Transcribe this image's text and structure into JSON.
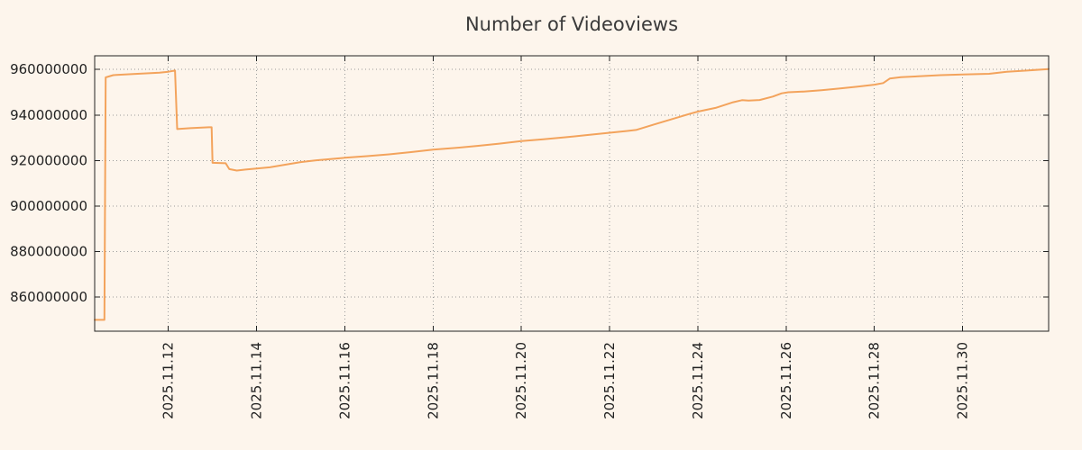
{
  "colors": {
    "background": "#fdf5ec",
    "line": "#f3a35c",
    "grid": "#9a9a9a",
    "axis": "#222222",
    "text": "#222222"
  },
  "chart_data": {
    "type": "line",
    "title": "Number of Videoviews",
    "xlabel": "",
    "ylabel": "",
    "legend": "none",
    "grid": "dotted",
    "x_unit": "date, day-of-November-2025 as number (31.95 ~ Dec 1)",
    "xlim": [
      10.33,
      31.95
    ],
    "ylim": [
      845000000,
      966000000
    ],
    "yticks": [
      860000000,
      880000000,
      900000000,
      920000000,
      940000000,
      960000000
    ],
    "xticks": [
      {
        "pos": 12,
        "label": "2025.11.12"
      },
      {
        "pos": 14,
        "label": "2025.11.14"
      },
      {
        "pos": 16,
        "label": "2025.11.16"
      },
      {
        "pos": 18,
        "label": "2025.11.18"
      },
      {
        "pos": 20,
        "label": "2025.11.20"
      },
      {
        "pos": 22,
        "label": "2025.11.22"
      },
      {
        "pos": 24,
        "label": "2025.11.24"
      },
      {
        "pos": 26,
        "label": "2025.11.26"
      },
      {
        "pos": 28,
        "label": "2025.11.28"
      },
      {
        "pos": 30,
        "label": "2025.11.30"
      }
    ],
    "points": [
      [
        10.33,
        850000000
      ],
      [
        10.55,
        850000000
      ],
      [
        10.58,
        956500000
      ],
      [
        10.75,
        957500000
      ],
      [
        11.2,
        958000000
      ],
      [
        11.8,
        958600000
      ],
      [
        12.0,
        959000000
      ],
      [
        12.15,
        959500000
      ],
      [
        12.2,
        933800000
      ],
      [
        12.5,
        934200000
      ],
      [
        12.92,
        934600000
      ],
      [
        12.98,
        934600000
      ],
      [
        13.0,
        919000000
      ],
      [
        13.3,
        918800000
      ],
      [
        13.38,
        916200000
      ],
      [
        13.55,
        915600000
      ],
      [
        13.75,
        916000000
      ],
      [
        14.0,
        916500000
      ],
      [
        14.3,
        917000000
      ],
      [
        14.6,
        918000000
      ],
      [
        15.0,
        919300000
      ],
      [
        15.35,
        920100000
      ],
      [
        15.7,
        920700000
      ],
      [
        16.0,
        921200000
      ],
      [
        16.5,
        921900000
      ],
      [
        17.0,
        922700000
      ],
      [
        17.5,
        923700000
      ],
      [
        18.0,
        924800000
      ],
      [
        18.5,
        925500000
      ],
      [
        19.0,
        926400000
      ],
      [
        19.5,
        927400000
      ],
      [
        20.0,
        928500000
      ],
      [
        20.5,
        929300000
      ],
      [
        21.0,
        930200000
      ],
      [
        21.5,
        931200000
      ],
      [
        22.0,
        932200000
      ],
      [
        22.4,
        933000000
      ],
      [
        22.6,
        933400000
      ],
      [
        23.0,
        935800000
      ],
      [
        23.4,
        938100000
      ],
      [
        23.8,
        940400000
      ],
      [
        24.0,
        941500000
      ],
      [
        24.4,
        943100000
      ],
      [
        24.8,
        945600000
      ],
      [
        25.0,
        946500000
      ],
      [
        25.15,
        946300000
      ],
      [
        25.4,
        946600000
      ],
      [
        25.7,
        948100000
      ],
      [
        25.9,
        949500000
      ],
      [
        26.05,
        950000000
      ],
      [
        26.4,
        950300000
      ],
      [
        26.8,
        950900000
      ],
      [
        27.2,
        951600000
      ],
      [
        27.6,
        952400000
      ],
      [
        28.0,
        953300000
      ],
      [
        28.2,
        954000000
      ],
      [
        28.35,
        956000000
      ],
      [
        28.6,
        956600000
      ],
      [
        29.0,
        957000000
      ],
      [
        29.5,
        957500000
      ],
      [
        30.0,
        957800000
      ],
      [
        30.6,
        958100000
      ],
      [
        31.0,
        959000000
      ],
      [
        31.5,
        959600000
      ],
      [
        31.95,
        960200000
      ]
    ]
  }
}
